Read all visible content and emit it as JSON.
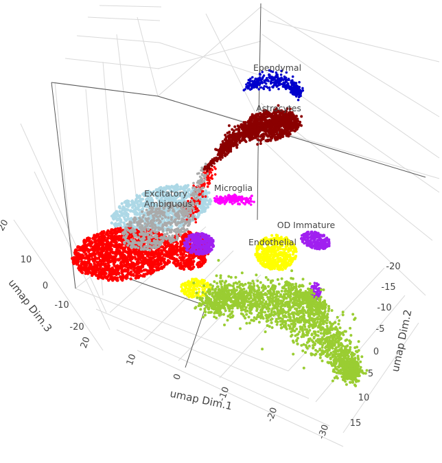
{
  "chart_data": {
    "type": "scatter",
    "projection": "3d",
    "title": "",
    "axes": {
      "x": {
        "label": "umap Dim.1",
        "ticks": [
          20,
          10,
          0,
          -10,
          -20,
          -30
        ]
      },
      "y": {
        "label": "umap Dim.2",
        "ticks": [
          -20,
          -15,
          -10,
          -5,
          0,
          5,
          10,
          15
        ]
      },
      "z": {
        "label": "umap Dim.3",
        "ticks": [
          20,
          10,
          0,
          -10,
          -20
        ]
      }
    },
    "grid": true,
    "legend": "none",
    "clusters": [
      {
        "label": "Ependymal",
        "color": "#0000cc"
      },
      {
        "label": "Astrocytes",
        "color": "#8b0000"
      },
      {
        "label": "Excitatory",
        "color": "#add8e6"
      },
      {
        "label": "Ambiguous",
        "color": "#aaaaaa"
      },
      {
        "label": "Microglia",
        "color": "#ff00ff"
      },
      {
        "label": "OD Immature",
        "color": "#a020f0"
      },
      {
        "label": "Endothelial",
        "color": "#ffff00"
      },
      {
        "label": "",
        "color": "#ff0000"
      },
      {
        "label": "",
        "color": "#9acd32"
      }
    ]
  }
}
